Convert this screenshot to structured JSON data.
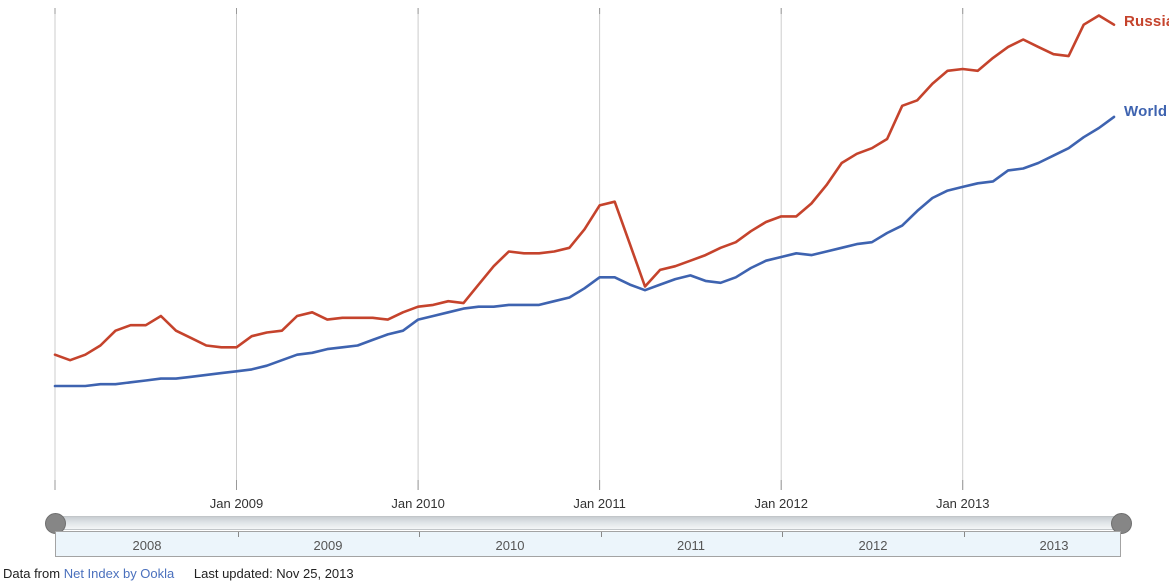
{
  "chart_data": {
    "type": "line",
    "title": "",
    "xlabel": "",
    "ylabel": "",
    "x_unit": "month",
    "x_start": "2008-01",
    "x_end": "2013-11",
    "x_tick_labels": [
      "Jan 2009",
      "Jan 2010",
      "Jan 2011",
      "Jan 2012",
      "Jan 2013"
    ],
    "y_axis_visible": false,
    "ylim": [
      0,
      25.5
    ],
    "grid": "vertical-only",
    "legend_position": "right-of-line-end",
    "series": [
      {
        "name": "Russia",
        "color": "#c5432c",
        "values": [
          6.8,
          6.5,
          6.8,
          7.3,
          8.1,
          8.4,
          8.4,
          8.9,
          8.1,
          7.7,
          7.3,
          7.2,
          7.2,
          7.8,
          8.0,
          8.1,
          8.9,
          9.1,
          8.7,
          8.8,
          8.8,
          8.8,
          8.7,
          9.1,
          9.4,
          9.5,
          9.7,
          9.6,
          10.6,
          11.6,
          12.4,
          12.3,
          12.3,
          12.4,
          12.6,
          13.6,
          14.9,
          15.1,
          12.8,
          10.5,
          11.4,
          11.6,
          11.9,
          12.2,
          12.6,
          12.9,
          13.5,
          14.0,
          14.3,
          14.3,
          15.0,
          16.0,
          17.2,
          17.7,
          18.0,
          18.5,
          20.3,
          20.6,
          21.5,
          22.2,
          22.3,
          22.2,
          22.9,
          23.5,
          23.9,
          23.5,
          23.1,
          23.0,
          24.7,
          25.2,
          24.7
        ]
      },
      {
        "name": "World",
        "color": "#3e63b0",
        "values": [
          5.1,
          5.1,
          5.1,
          5.2,
          5.2,
          5.3,
          5.4,
          5.5,
          5.5,
          5.6,
          5.7,
          5.8,
          5.9,
          6.0,
          6.2,
          6.5,
          6.8,
          6.9,
          7.1,
          7.2,
          7.3,
          7.6,
          7.9,
          8.1,
          8.7,
          8.9,
          9.1,
          9.3,
          9.4,
          9.4,
          9.5,
          9.5,
          9.5,
          9.7,
          9.9,
          10.4,
          11.0,
          11.0,
          10.6,
          10.3,
          10.6,
          10.9,
          11.1,
          10.8,
          10.7,
          11.0,
          11.5,
          11.9,
          12.1,
          12.3,
          12.2,
          12.4,
          12.6,
          12.8,
          12.9,
          13.4,
          13.8,
          14.6,
          15.3,
          15.7,
          15.9,
          16.1,
          16.2,
          16.8,
          16.9,
          17.2,
          17.6,
          18.0,
          18.6,
          19.1,
          19.7
        ]
      }
    ]
  },
  "timeline": {
    "years": [
      "2008",
      "2009",
      "2010",
      "2011",
      "2012",
      "2013"
    ]
  },
  "footer": {
    "prefix": "Data from",
    "link_text": "Net Index by Ookla",
    "link_color": "#4a70bd",
    "updated": "Last updated: Nov 25, 2013"
  }
}
